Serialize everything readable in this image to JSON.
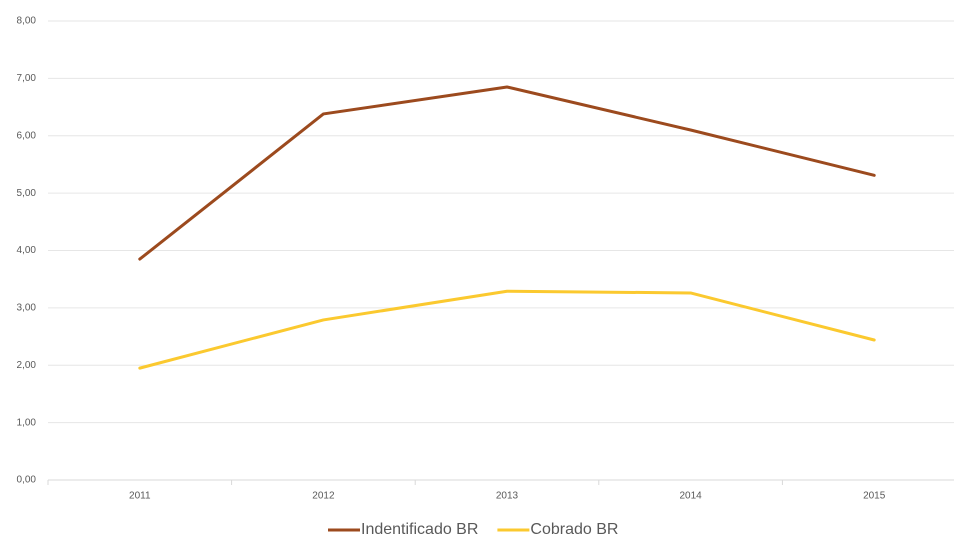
{
  "chart_data": {
    "type": "line",
    "categories": [
      "2011",
      "2012",
      "2013",
      "2014",
      "2015"
    ],
    "series": [
      {
        "name": "Indentificado BR",
        "color": "#9c4a1e",
        "values": [
          3.85,
          6.38,
          6.85,
          6.1,
          5.31
        ]
      },
      {
        "name": "Cobrado BR",
        "color": "#fbc92f",
        "values": [
          1.95,
          2.79,
          3.29,
          3.26,
          2.44
        ]
      }
    ],
    "ylim": [
      0,
      8
    ],
    "yticks": [
      {
        "value": 0,
        "label": "0,00"
      },
      {
        "value": 1,
        "label": "1,00"
      },
      {
        "value": 2,
        "label": "2,00"
      },
      {
        "value": 3,
        "label": "3,00"
      },
      {
        "value": 4,
        "label": "4,00"
      },
      {
        "value": 5,
        "label": "5,00"
      },
      {
        "value": 6,
        "label": "6,00"
      },
      {
        "value": 7,
        "label": "7,00"
      },
      {
        "value": 8,
        "label": "8,00"
      }
    ],
    "grid": true,
    "legend": "bottom"
  }
}
